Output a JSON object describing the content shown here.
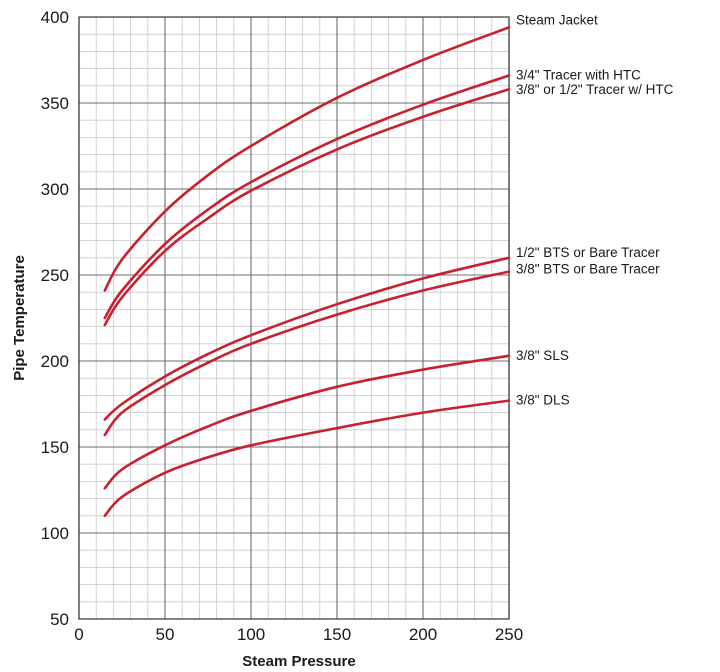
{
  "chart_data": {
    "type": "line",
    "title": "",
    "xlabel": "Steam Pressure",
    "ylabel": "Pipe Temperature",
    "xlim": [
      0,
      250
    ],
    "ylim": [
      50,
      400
    ],
    "xticks": [
      0,
      50,
      100,
      150,
      200,
      250
    ],
    "yticks": [
      50,
      100,
      150,
      200,
      250,
      300,
      350,
      400
    ],
    "grid": true,
    "minor_grid": {
      "x_step": 10,
      "y_step": 10
    },
    "legend": "right-edge labels",
    "line_color": "#c8202f",
    "series": [
      {
        "name": "Steam Jacket",
        "x": [
          15,
          25,
          50,
          75,
          100,
          150,
          200,
          250
        ],
        "y": [
          241,
          259,
          287,
          308,
          325,
          353,
          375,
          394
        ]
      },
      {
        "name": "3/4\" Tracer with HTC",
        "x": [
          15,
          25,
          50,
          75,
          100,
          150,
          200,
          250
        ],
        "y": [
          225,
          241,
          268,
          288,
          304,
          329,
          349,
          366
        ]
      },
      {
        "name": "3/8\" or 1/2\" Tracer w/ HTC",
        "x": [
          15,
          25,
          50,
          75,
          100,
          150,
          200,
          250
        ],
        "y": [
          221,
          237,
          264,
          283,
          299,
          323,
          342,
          358
        ]
      },
      {
        "name": "1/2\" BTS or Bare Tracer",
        "x": [
          15,
          25,
          50,
          75,
          100,
          150,
          200,
          250
        ],
        "y": [
          166,
          175,
          191,
          204,
          215,
          233,
          248,
          260
        ]
      },
      {
        "name": "3/8\" BTS or Bare Tracer",
        "x": [
          15,
          25,
          50,
          75,
          100,
          150,
          200,
          250
        ],
        "y": [
          157,
          170,
          186,
          199,
          210,
          227,
          241,
          252
        ]
      },
      {
        "name": "3/8\" SLS",
        "x": [
          15,
          25,
          50,
          75,
          100,
          150,
          200,
          250
        ],
        "y": [
          126,
          137,
          151,
          162,
          171,
          185,
          195,
          203
        ]
      },
      {
        "name": "3/8\" DLS",
        "x": [
          15,
          25,
          50,
          75,
          100,
          150,
          200,
          250
        ],
        "y": [
          110,
          121,
          135,
          144,
          151,
          161,
          170,
          177
        ]
      }
    ]
  }
}
